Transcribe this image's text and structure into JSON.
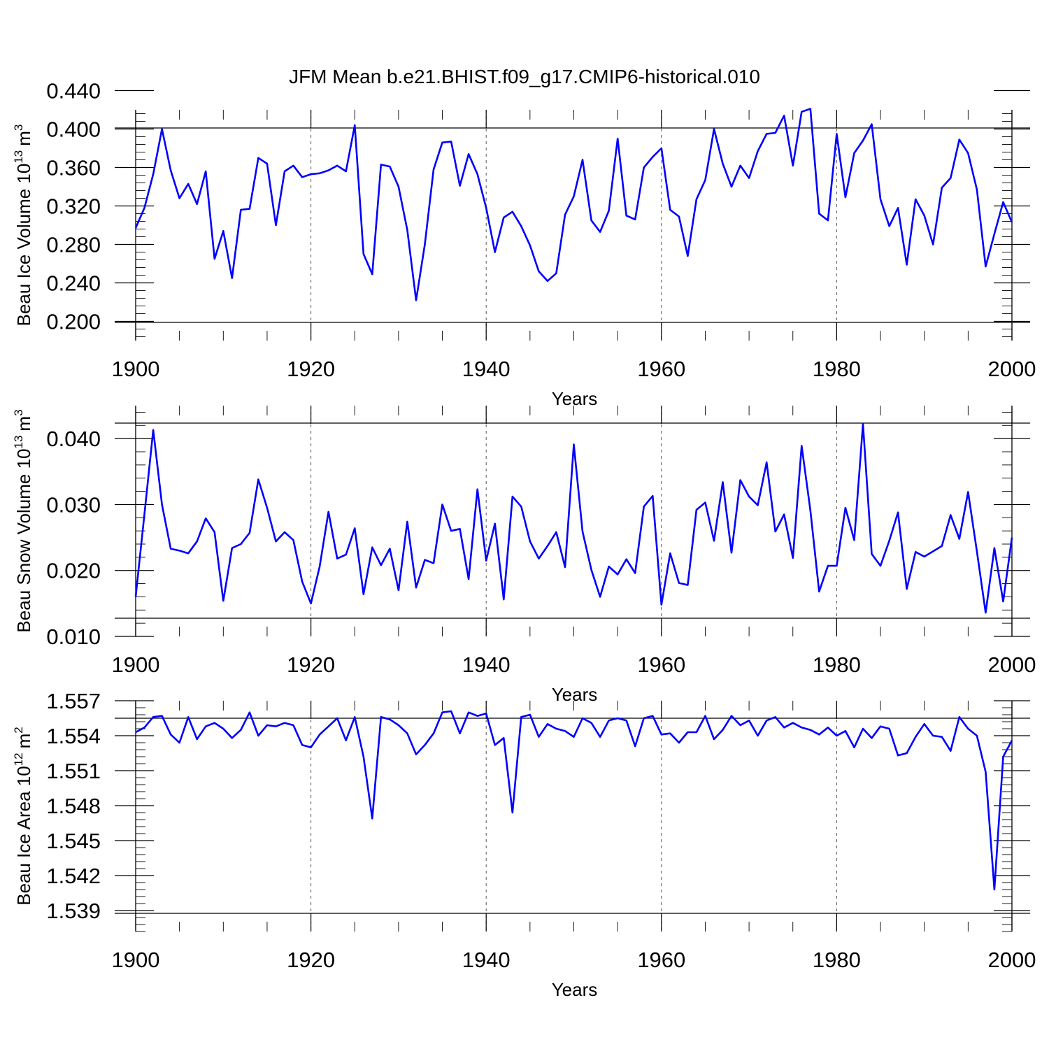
{
  "figure": {
    "title": "JFM Mean b.e21.BHIST.f09_g17.CMIP6-historical.010",
    "line_color": "#0000ff"
  },
  "chart_data": [
    {
      "type": "line",
      "ylabel": "Beau Ice Volume 10",
      "ylabel_exp": "13",
      "ylabel_unit": "m",
      "ylabel_unit_exp": "3",
      "xlabel": "Years",
      "xlim": [
        1900,
        2000
      ],
      "ylim": [
        0.18,
        0.42
      ],
      "y_ticks": [
        "0.200",
        "0.240",
        "0.280",
        "0.320",
        "0.360",
        "0.400",
        "0.440"
      ],
      "x_ticks": [
        "1900",
        "1920",
        "1940",
        "1960",
        "1980",
        "2000"
      ],
      "series": [
        {
          "name": "Beau Ice Volume",
          "x_start": 1900,
          "values": [
            0.297,
            0.318,
            0.353,
            0.4,
            0.357,
            0.328,
            0.343,
            0.322,
            0.356,
            0.265,
            0.294,
            0.245,
            0.316,
            0.317,
            0.37,
            0.364,
            0.3,
            0.356,
            0.362,
            0.35,
            0.353,
            0.354,
            0.357,
            0.362,
            0.356,
            0.404,
            0.27,
            0.249,
            0.363,
            0.361,
            0.34,
            0.295,
            0.222,
            0.28,
            0.358,
            0.386,
            0.387,
            0.341,
            0.374,
            0.353,
            0.318,
            0.272,
            0.308,
            0.314,
            0.299,
            0.279,
            0.252,
            0.242,
            0.25,
            0.311,
            0.33,
            0.368,
            0.305,
            0.293,
            0.315,
            0.39,
            0.31,
            0.306,
            0.36,
            0.371,
            0.38,
            0.316,
            0.309,
            0.268,
            0.327,
            0.347,
            0.4,
            0.364,
            0.34,
            0.362,
            0.349,
            0.377,
            0.395,
            0.396,
            0.414,
            0.362,
            0.418,
            0.421,
            0.312,
            0.305,
            0.395,
            0.329,
            0.375,
            0.388,
            0.405,
            0.327,
            0.299,
            0.318,
            0.259,
            0.327,
            0.31,
            0.28,
            0.339,
            0.349,
            0.389,
            0.375,
            0.337,
            0.257,
            0.291,
            0.324,
            0.303
          ]
        }
      ]
    },
    {
      "type": "line",
      "ylabel": "Beau Snow Volume 10",
      "ylabel_exp": "13",
      "ylabel_unit": "m",
      "ylabel_unit_exp": "3",
      "xlabel": "Years",
      "xlim": [
        1900,
        2000
      ],
      "ylim": [
        0.01,
        0.045
      ],
      "y_ticks": [
        "0.010",
        "0.020",
        "0.030",
        "0.040"
      ],
      "x_ticks": [
        "1900",
        "1920",
        "1940",
        "1960",
        "1980",
        "2000"
      ],
      "series": [
        {
          "name": "Beau Snow Volume",
          "x_start": 1900,
          "values": [
            0.016,
            0.0285,
            0.0413,
            0.03,
            0.0233,
            0.023,
            0.0226,
            0.0244,
            0.0279,
            0.0258,
            0.0154,
            0.0234,
            0.024,
            0.0257,
            0.0338,
            0.0295,
            0.0244,
            0.0258,
            0.0246,
            0.0183,
            0.015,
            0.0206,
            0.0289,
            0.0218,
            0.0224,
            0.0264,
            0.0164,
            0.0235,
            0.0208,
            0.0233,
            0.017,
            0.0274,
            0.0174,
            0.0216,
            0.0211,
            0.03,
            0.026,
            0.0263,
            0.0187,
            0.0323,
            0.0215,
            0.0271,
            0.0156,
            0.0312,
            0.0297,
            0.0244,
            0.0218,
            0.0237,
            0.0258,
            0.0205,
            0.0391,
            0.0259,
            0.0201,
            0.016,
            0.0206,
            0.0194,
            0.0217,
            0.0196,
            0.0297,
            0.0313,
            0.0148,
            0.0226,
            0.0181,
            0.0178,
            0.0292,
            0.0303,
            0.0245,
            0.0334,
            0.0227,
            0.0337,
            0.0312,
            0.0299,
            0.0364,
            0.0259,
            0.0285,
            0.0219,
            0.0389,
            0.0291,
            0.0168,
            0.0207,
            0.0207,
            0.0295,
            0.0246,
            0.0422,
            0.0225,
            0.0207,
            0.0245,
            0.0288,
            0.0172,
            0.0228,
            0.0221,
            0.0229,
            0.0237,
            0.0284,
            0.0248,
            0.0319,
            0.0229,
            0.0136,
            0.0234,
            0.0153,
            0.025
          ]
        }
      ]
    },
    {
      "type": "line",
      "ylabel": "Beau Ice Area 10",
      "ylabel_exp": "12",
      "ylabel_unit": "m",
      "ylabel_unit_exp": "2",
      "xlabel": "Years",
      "xlim": [
        1900,
        2000
      ],
      "ylim": [
        1.5372,
        1.557
      ],
      "y_ticks": [
        "1.539",
        "1.542",
        "1.545",
        "1.548",
        "1.551",
        "1.554",
        "1.557"
      ],
      "y_tick_values": [
        1.539,
        1.542,
        1.545,
        1.548,
        1.551,
        1.554,
        1.557
      ],
      "x_ticks": [
        "1900",
        "1920",
        "1940",
        "1960",
        "1980",
        "2000"
      ],
      "series": [
        {
          "name": "Beau Ice Area",
          "x_start": 1900,
          "values": [
            1.5543,
            1.5547,
            1.5556,
            1.5557,
            1.5541,
            1.5534,
            1.5556,
            1.5537,
            1.5548,
            1.5551,
            1.5546,
            1.5538,
            1.5545,
            1.556,
            1.554,
            1.5549,
            1.5548,
            1.5551,
            1.5549,
            1.5532,
            1.553,
            1.5541,
            1.5548,
            1.5555,
            1.5536,
            1.5556,
            1.5522,
            1.5469,
            1.5556,
            1.5554,
            1.5549,
            1.5542,
            1.5524,
            1.5532,
            1.5542,
            1.556,
            1.5561,
            1.5542,
            1.556,
            1.5557,
            1.5559,
            1.5532,
            1.5538,
            1.5474,
            1.5556,
            1.5558,
            1.5539,
            1.555,
            1.5546,
            1.5544,
            1.5539,
            1.5555,
            1.5551,
            1.5539,
            1.5553,
            1.5555,
            1.5553,
            1.5531,
            1.5555,
            1.5557,
            1.5541,
            1.5542,
            1.5534,
            1.5543,
            1.5543,
            1.5557,
            1.5537,
            1.5545,
            1.5557,
            1.5549,
            1.5553,
            1.554,
            1.5553,
            1.5556,
            1.5547,
            1.5551,
            1.5547,
            1.5545,
            1.5541,
            1.5547,
            1.554,
            1.5544,
            1.553,
            1.5546,
            1.5538,
            1.5548,
            1.5546,
            1.5523,
            1.5525,
            1.5539,
            1.555,
            1.554,
            1.5539,
            1.5527,
            1.5556,
            1.5546,
            1.554,
            1.5509,
            1.5408,
            1.5522,
            1.5536
          ]
        }
      ]
    }
  ]
}
